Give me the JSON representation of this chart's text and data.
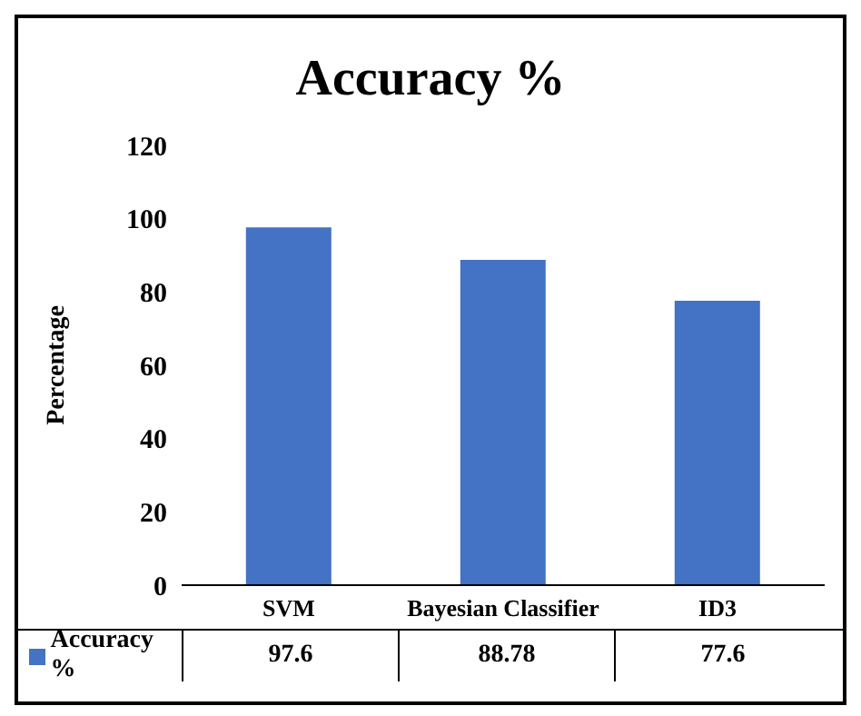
{
  "chart_data": {
    "type": "bar",
    "title": "Accuracy %",
    "ylabel": "Percentage",
    "categories": [
      "SVM",
      "Bayesian Classifier",
      "ID3"
    ],
    "series": [
      {
        "name": "Accuracy %",
        "color": "#4472c4",
        "values": [
          97.6,
          88.78,
          77.6
        ]
      }
    ],
    "ylim": [
      0,
      120
    ],
    "yticks": [
      0,
      20,
      40,
      60,
      80,
      100,
      120
    ],
    "grid": false,
    "legend": "bottom",
    "data_labels": true
  }
}
